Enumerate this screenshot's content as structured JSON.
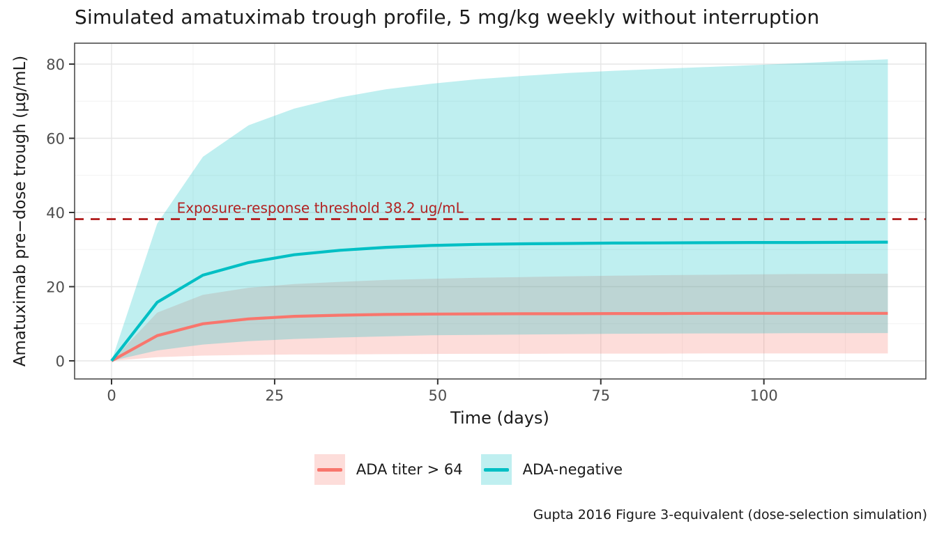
{
  "title": "Simulated amatuximab trough profile, 5 mg/kg weekly without interruption",
  "caption": "Gupta 2016 Figure 3-equivalent (dose-selection simulation)",
  "axes": {
    "x": {
      "label": "Time (days)"
    },
    "y": {
      "label": "Amatuximab pre−dose trough (µg/mL)"
    }
  },
  "annotation": {
    "text": "Exposure-response threshold 38.2 ug/mL",
    "x_day": 10,
    "color": "#B22222"
  },
  "threshold": {
    "value": 38.2,
    "color": "#B22222"
  },
  "legend": [
    {
      "label": "ADA titer > 64",
      "color": "#F8766D"
    },
    {
      "label": "ADA-negative",
      "color": "#00BFC4"
    }
  ],
  "colors": {
    "grid_major": "#e6e6e6",
    "grid_minor": "#f2f2f2",
    "panel_border": "#4d4d4d",
    "tick": "#333333",
    "tick_label": "#4d4d4d"
  },
  "chart_data": {
    "type": "line",
    "title": "Simulated amatuximab trough profile, 5 mg/kg weekly without interruption",
    "xlabel": "Time (days)",
    "ylabel": "Amatuximab pre−dose trough (µg/mL)",
    "xlim": [
      -5.7,
      124.8
    ],
    "ylim": [
      -4.9,
      85.6
    ],
    "x_ticks": [
      0,
      25,
      50,
      75,
      100
    ],
    "x_minor": [
      12.5,
      37.5,
      62.5,
      87.5,
      112.5
    ],
    "y_ticks": [
      0,
      20,
      40,
      60,
      80
    ],
    "y_minor": [
      10,
      30,
      50,
      70
    ],
    "grid": true,
    "legend_position": "bottom",
    "threshold_line": {
      "y": 38.2,
      "style": "dashed",
      "color": "#B22222",
      "label": "Exposure-response threshold 38.2 ug/mL"
    },
    "x": [
      0,
      7,
      14,
      21,
      28,
      35,
      42,
      49,
      56,
      63,
      70,
      77,
      84,
      91,
      98,
      105,
      112,
      119
    ],
    "series": [
      {
        "name": "ADA titer > 64",
        "color": "#F8766D",
        "ribbon_alpha": 0.25,
        "values": [
          0,
          6.8,
          10.0,
          11.3,
          12.0,
          12.3,
          12.5,
          12.6,
          12.65,
          12.7,
          12.7,
          12.75,
          12.75,
          12.8,
          12.8,
          12.8,
          12.8,
          12.8
        ],
        "lower": [
          0,
          1.0,
          1.4,
          1.6,
          1.7,
          1.75,
          1.8,
          1.85,
          1.9,
          1.9,
          1.95,
          1.95,
          1.95,
          2.0,
          2.0,
          2.0,
          2.0,
          2.0
        ],
        "upper": [
          0,
          13.0,
          17.8,
          19.7,
          20.7,
          21.3,
          21.8,
          22.1,
          22.4,
          22.6,
          22.8,
          22.95,
          23.1,
          23.2,
          23.3,
          23.4,
          23.45,
          23.5
        ]
      },
      {
        "name": "ADA-negative",
        "color": "#00BFC4",
        "ribbon_alpha": 0.25,
        "values": [
          0,
          15.8,
          23.1,
          26.5,
          28.6,
          29.8,
          30.6,
          31.1,
          31.4,
          31.55,
          31.65,
          31.75,
          31.8,
          31.85,
          31.9,
          31.9,
          31.95,
          32.0
        ],
        "lower": [
          0,
          2.8,
          4.4,
          5.3,
          5.9,
          6.3,
          6.6,
          6.9,
          7.0,
          7.1,
          7.2,
          7.3,
          7.35,
          7.4,
          7.4,
          7.45,
          7.45,
          7.5
        ],
        "upper": [
          0,
          37.0,
          55.0,
          63.5,
          68.0,
          71.0,
          73.2,
          74.7,
          75.9,
          76.8,
          77.6,
          78.2,
          78.7,
          79.2,
          79.7,
          80.2,
          80.8,
          81.3
        ]
      }
    ]
  }
}
